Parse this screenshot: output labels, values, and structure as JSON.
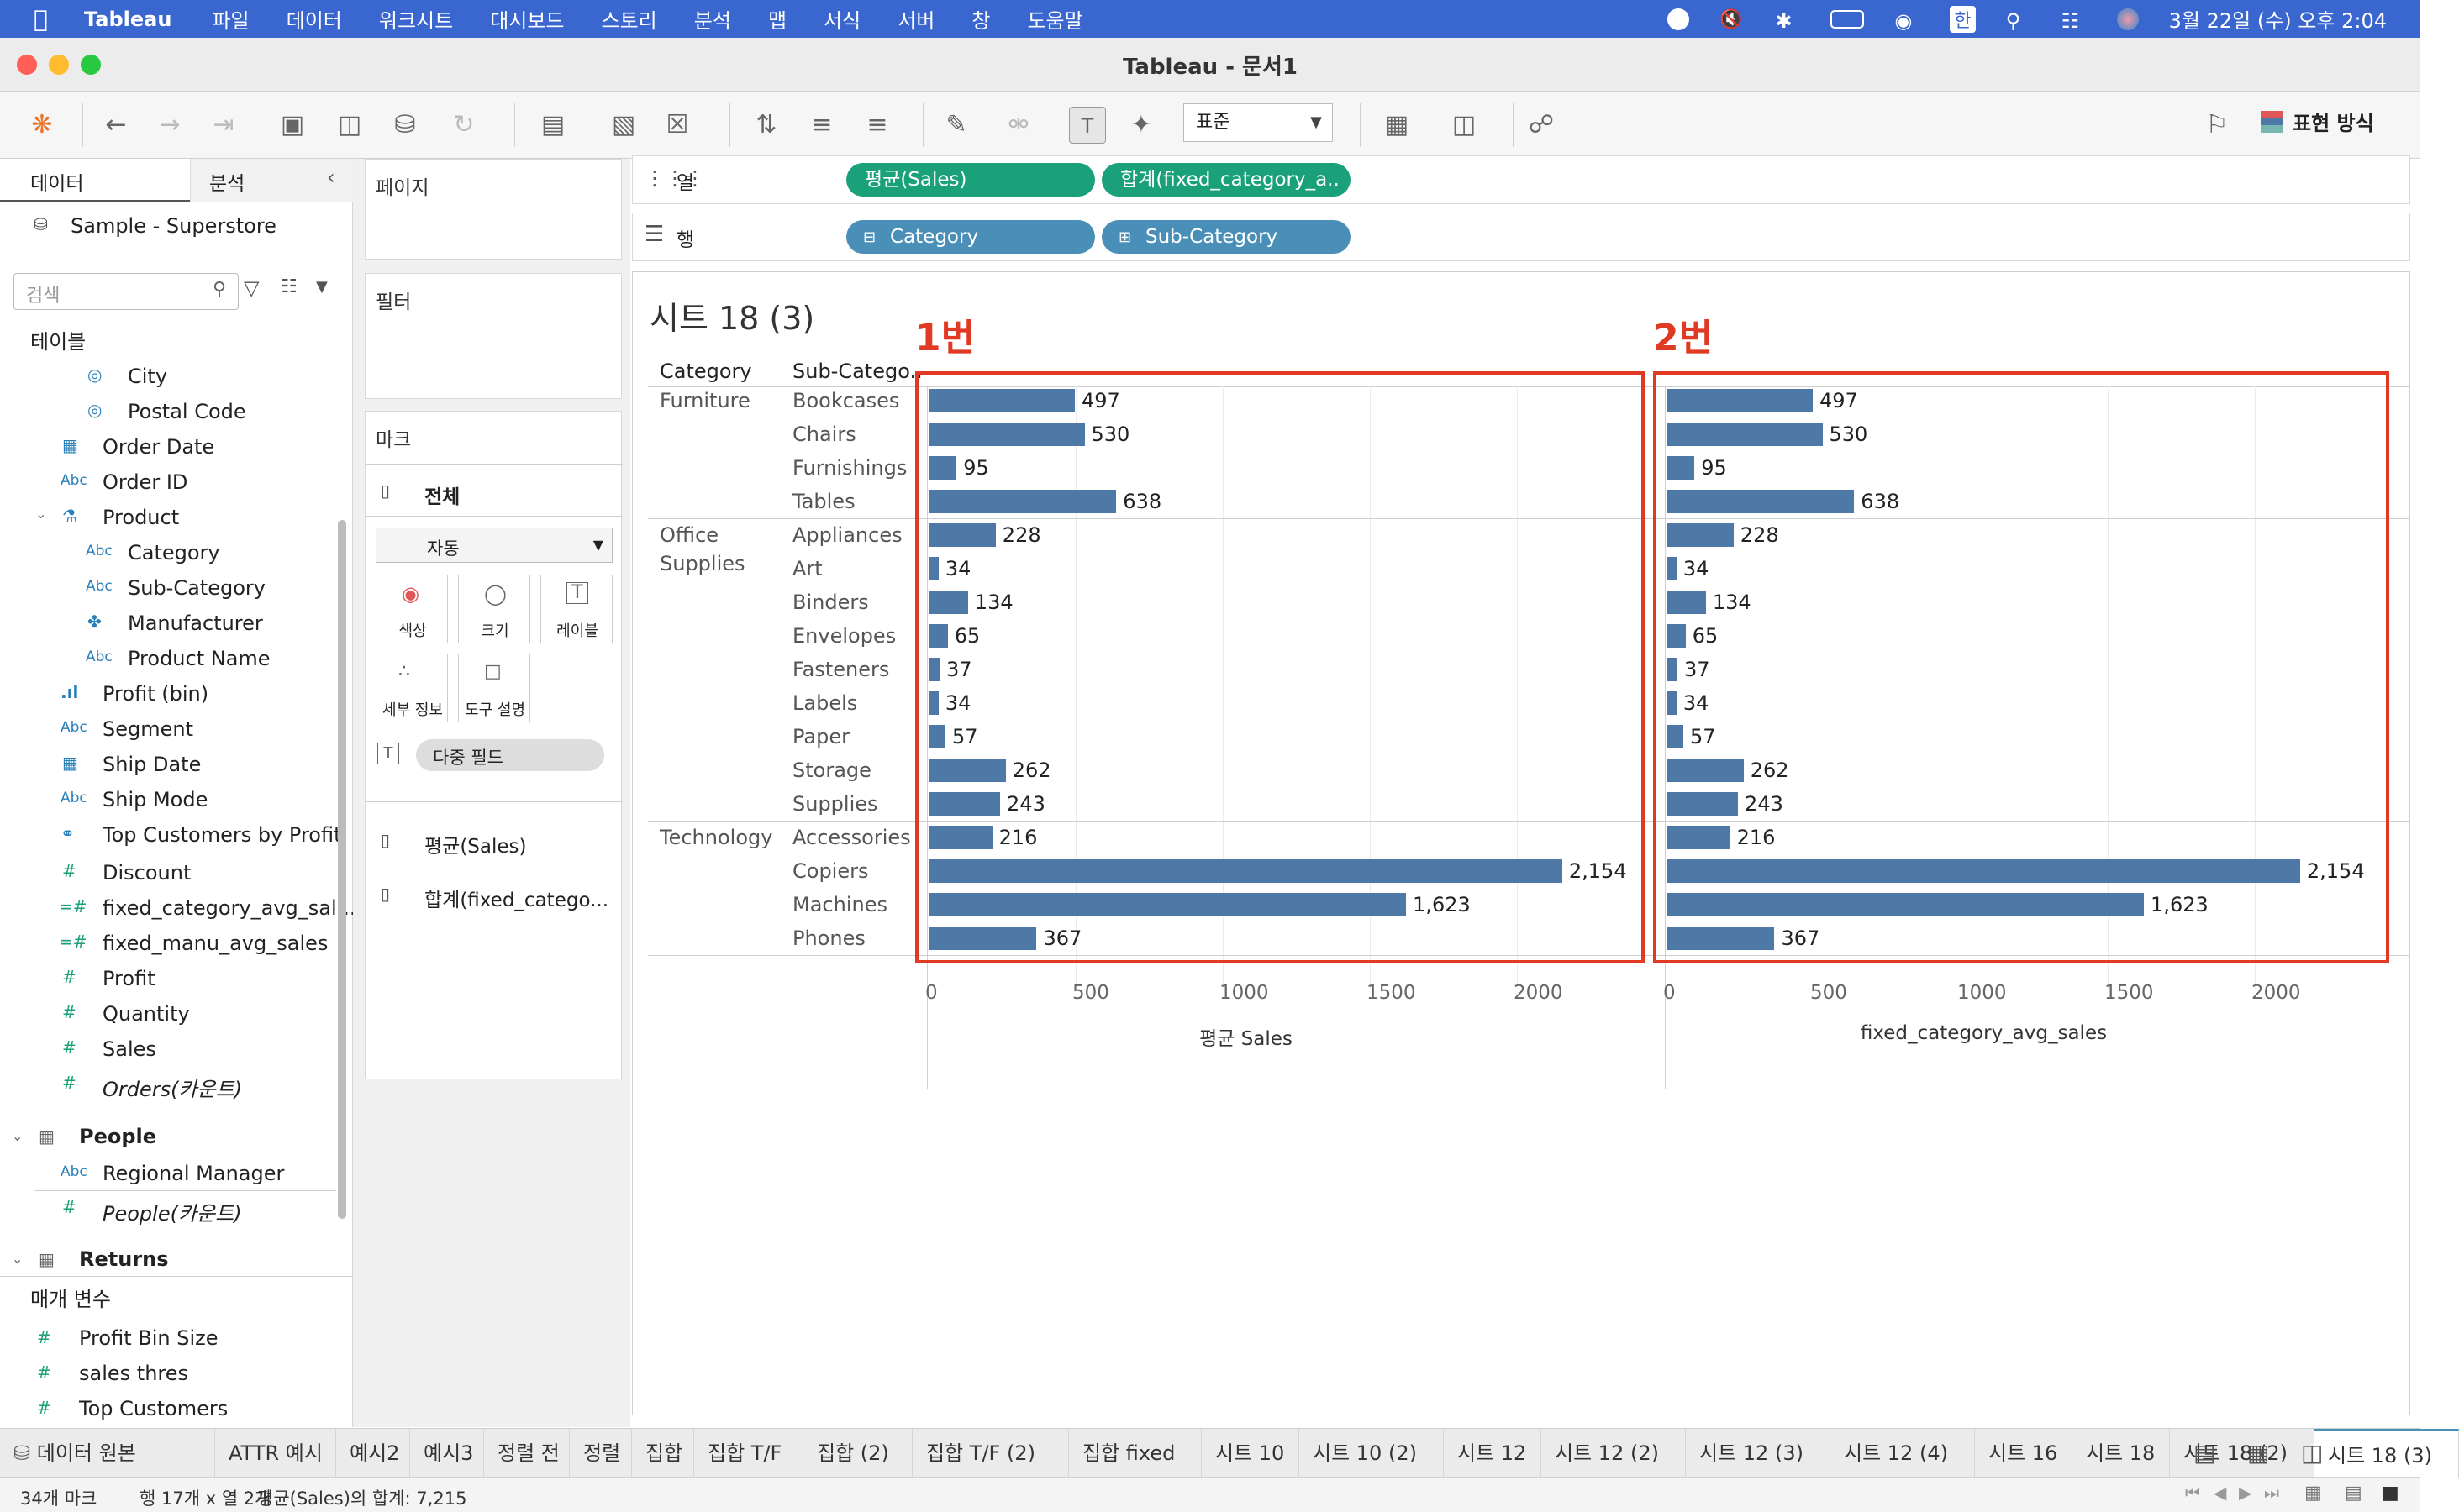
{
  "menubar": {
    "app": "Tableau",
    "items": [
      "파일",
      "데이터",
      "워크시트",
      "대시보드",
      "스토리",
      "분석",
      "맵",
      "서식",
      "서버",
      "창",
      "도움말"
    ],
    "ime": "한",
    "datetime": "3월 22일 (수) 오후 2:04"
  },
  "window": {
    "title": "Tableau - 문서1"
  },
  "toolbar": {
    "fit": "표준",
    "show_me": "표현 방식"
  },
  "leftpane": {
    "tab_data": "데이터",
    "tab_analysis": "분석",
    "datasource": "Sample - Superstore",
    "search_placeholder": "검색",
    "tables_header": "테이블",
    "fields": [
      {
        "name": "City",
        "icon": "globe-icon"
      },
      {
        "name": "Postal Code",
        "icon": "globe-icon"
      },
      {
        "name": "Order Date",
        "icon": "calendar-icon"
      },
      {
        "name": "Order ID",
        "icon": "abc-icon"
      },
      {
        "name": "Product",
        "icon": "hierarchy-icon"
      },
      {
        "name": "Category",
        "icon": "abc-icon"
      },
      {
        "name": "Sub-Category",
        "icon": "abc-icon"
      },
      {
        "name": "Manufacturer",
        "icon": "paperclip-icon"
      },
      {
        "name": "Product Name",
        "icon": "abc-icon"
      },
      {
        "name": "Profit (bin)",
        "icon": "bin-icon"
      },
      {
        "name": "Segment",
        "icon": "abc-icon"
      },
      {
        "name": "Ship Date",
        "icon": "calendar-icon"
      },
      {
        "name": "Ship Mode",
        "icon": "abc-icon"
      },
      {
        "name": "Top Customers by Profit",
        "icon": "set-icon"
      },
      {
        "name": "Discount",
        "icon": "number-icon"
      },
      {
        "name": "fixed_category_avg_sal...",
        "icon": "calc-number-icon"
      },
      {
        "name": "fixed_manu_avg_sales",
        "icon": "calc-number-icon"
      },
      {
        "name": "Profit",
        "icon": "number-icon"
      },
      {
        "name": "Quantity",
        "icon": "number-icon"
      },
      {
        "name": "Sales",
        "icon": "number-icon"
      },
      {
        "name": "Orders(카운트)",
        "icon": "number-icon"
      }
    ],
    "people": "People",
    "regional_manager": "Regional Manager",
    "people_count": "People(카운트)",
    "returns": "Returns",
    "params_header": "매개 변수",
    "params": [
      "Profit Bin Size",
      "sales thres",
      "Top Customers"
    ]
  },
  "shelves": {
    "pages": "페이지",
    "filters": "필터",
    "marks": "마크",
    "marks_all": "전체",
    "mark_type": "자동",
    "btn_color": "색상",
    "btn_size": "크기",
    "btn_label": "레이블",
    "btn_detail": "세부 정보",
    "btn_tooltip": "도구 설명",
    "multi_field": "다중 필드",
    "card_avg_sales": "평균(Sales)",
    "card_sum_fixed": "합계(fixed_catego...",
    "columns_label": "열",
    "rows_label": "행",
    "col_pill_1": "평균(Sales)",
    "col_pill_2": "합계(fixed_category_a..",
    "row_pill_1": "Category",
    "row_pill_2": "Sub-Category"
  },
  "view": {
    "sheet_title": "시트 18 (3)",
    "hdr_category": "Category",
    "hdr_subcategory": "Sub-Catego..",
    "annot_1": "1번",
    "annot_2": "2번"
  },
  "chart_data": {
    "type": "bar",
    "orientation": "horizontal",
    "groups": [
      {
        "category": "Furniture",
        "subcategories": [
          "Bookcases",
          "Chairs",
          "Furnishings",
          "Tables"
        ]
      },
      {
        "category": "Office Supplies",
        "subcategories": [
          "Appliances",
          "Art",
          "Binders",
          "Envelopes",
          "Fasteners",
          "Labels",
          "Paper",
          "Storage",
          "Supplies"
        ]
      },
      {
        "category": "Technology",
        "subcategories": [
          "Accessories",
          "Copiers",
          "Machines",
          "Phones"
        ]
      }
    ],
    "categories": [
      "Bookcases",
      "Chairs",
      "Furnishings",
      "Tables",
      "Appliances",
      "Art",
      "Binders",
      "Envelopes",
      "Fasteners",
      "Labels",
      "Paper",
      "Storage",
      "Supplies",
      "Accessories",
      "Copiers",
      "Machines",
      "Phones"
    ],
    "series": [
      {
        "name": "평균 Sales",
        "values": [
          497,
          530,
          95,
          638,
          228,
          34,
          134,
          65,
          37,
          34,
          57,
          262,
          243,
          216,
          2154,
          1623,
          367
        ],
        "labels": [
          "497",
          "530",
          "95",
          "638",
          "228",
          "34",
          "134",
          "65",
          "37",
          "34",
          "57",
          "262",
          "243",
          "216",
          "2,154",
          "1,623",
          "367"
        ]
      },
      {
        "name": "fixed_category_avg_sales",
        "values": [
          497,
          530,
          95,
          638,
          228,
          34,
          134,
          65,
          37,
          34,
          57,
          262,
          243,
          216,
          2154,
          1623,
          367
        ],
        "labels": [
          "497",
          "530",
          "95",
          "638",
          "228",
          "34",
          "134",
          "65",
          "37",
          "34",
          "57",
          "262",
          "243",
          "216",
          "2,154",
          "1,623",
          "367"
        ]
      }
    ],
    "xticks": [
      "0",
      "500",
      "1000",
      "1500",
      "2000"
    ],
    "xlim": [
      0,
      2500
    ],
    "xlabels": [
      "평균 Sales",
      "fixed_category_avg_sales"
    ],
    "bar_color": "#4e79a7"
  },
  "tabs": {
    "datasource": "데이터 원본",
    "sheets": [
      "ATTR 예시",
      "예시2",
      "예시3",
      "정렬 전",
      "정렬",
      "집합",
      "집합 T/F",
      "집합 (2)",
      "집합 T/F (2)",
      "집합 fixed",
      "시트 10",
      "시트 10 (2)",
      "시트 12",
      "시트 12 (2)",
      "시트 12 (3)",
      "시트 12 (4)",
      "시트 16",
      "시트 18",
      "시트 18 (2)",
      "시트 18 (3)"
    ],
    "active": "시트 18 (3)"
  },
  "status": {
    "marks": "34개 마크",
    "rows_cols": "행 17개 x 열 2개",
    "sum": "평균(Sales)의 합계: 7,215"
  },
  "colors": {
    "menubar": "#3a66d0",
    "pill_green": "#1aa179",
    "pill_blue": "#4a8fb8",
    "annotation_red": "#e03a24"
  }
}
